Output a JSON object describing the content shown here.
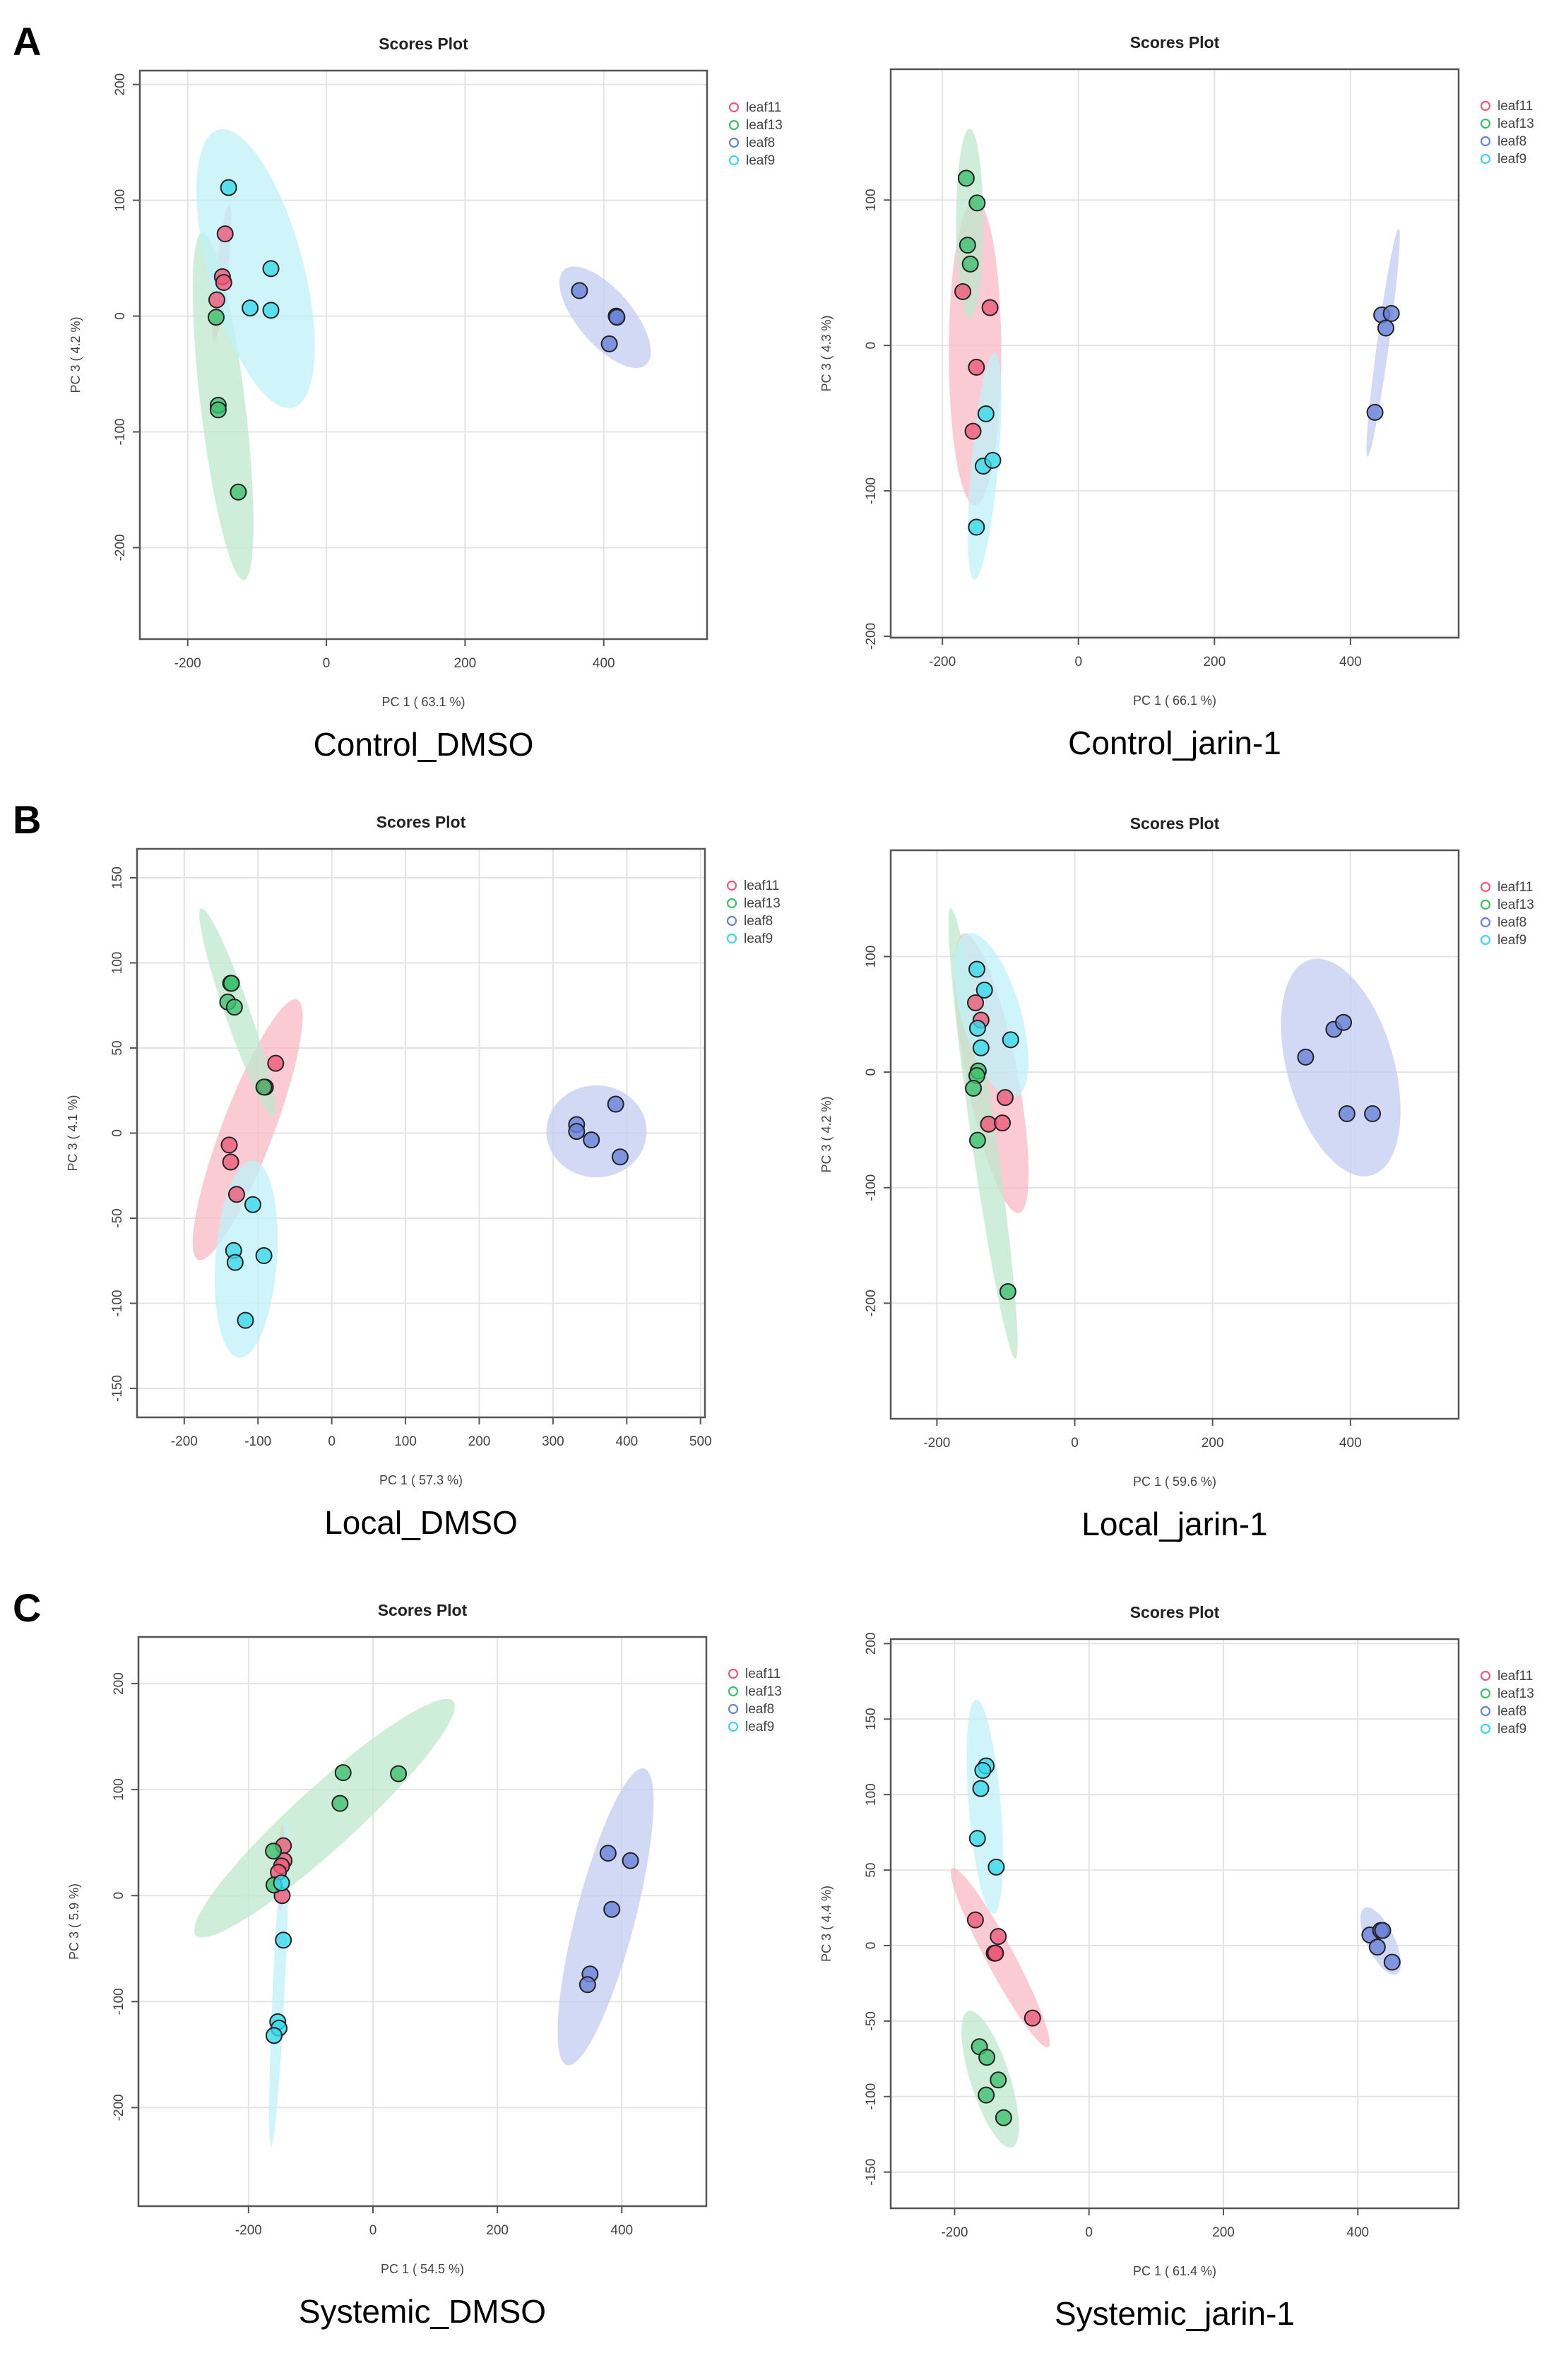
{
  "colors": {
    "leaf11": "#ee5a78",
    "leaf13": "#3fbf6e",
    "leaf8": "#6a82d8",
    "leaf9": "#3ad8ea",
    "ellipse_leaf11": "#f9b9c6",
    "ellipse_leaf13": "#bfe8cc",
    "ellipse_leaf8": "#c3ccf2",
    "ellipse_leaf9": "#bff1f8"
  },
  "chart_data": [
    {
      "type": "scatter",
      "panel_letter": "A",
      "title": "Scores Plot",
      "caption": "Control_DMSO",
      "xlabel": "PC 1 ( 63.1 %)",
      "ylabel": "PC 3 ( 4.2 %)",
      "xlim": [
        -269,
        549
      ],
      "ylim": [
        -279,
        212
      ],
      "xticks": [
        -200,
        0,
        200,
        400
      ],
      "yticks": [
        -200,
        -100,
        0,
        100,
        200
      ],
      "grid": true,
      "legend": "right",
      "series": [
        {
          "name": "leaf11",
          "points": [
            [
              -146,
              71
            ],
            [
              -150,
              34
            ],
            [
              -148,
              29
            ],
            [
              -158,
              14
            ]
          ],
          "ellipse": {
            "center": [
              -151,
              37
            ],
            "a": [
              -11,
              -59
            ],
            "b": [
              8.5,
              -0.5
            ]
          }
        },
        {
          "name": "leaf13",
          "points": [
            [
              -159,
              -1
            ],
            [
              -156,
              -77
            ],
            [
              -156,
              -81
            ],
            [
              -127,
              -152
            ]
          ],
          "ellipse": {
            "center": [
              -149,
              -78
            ],
            "a": [
              30,
              -150
            ],
            "b": [
              32,
              2
            ]
          }
        },
        {
          "name": "leaf8",
          "points": [
            [
              365,
              22
            ],
            [
              418,
              0
            ],
            [
              419,
              -1
            ],
            [
              408,
              -24
            ]
          ],
          "ellipse": {
            "center": [
              402,
              -1
            ],
            "a": [
              59,
              -41
            ],
            "b": [
              29.5,
              15.5
            ]
          }
        },
        {
          "name": "leaf9",
          "points": [
            [
              -141,
              111
            ],
            [
              -80,
              41
            ],
            [
              -110,
              7
            ],
            [
              -80,
              5
            ]
          ],
          "ellipse": {
            "center": [
              -102,
              41
            ],
            "a": [
              54,
              -120
            ],
            "b": [
              66,
              11
            ]
          }
        }
      ]
    },
    {
      "type": "scatter",
      "panel_letter": "",
      "title": "Scores Plot",
      "caption": "Control_jarin-1",
      "xlabel": "PC 1 ( 66.1 %)",
      "ylabel": "PC 3 ( 4.3 %)",
      "xlim": [
        -276,
        559
      ],
      "ylim": [
        -201,
        190
      ],
      "xticks": [
        -200,
        0,
        200,
        400
      ],
      "yticks": [
        -200,
        -100,
        0,
        100
      ],
      "grid": true,
      "legend": "right",
      "series": [
        {
          "name": "leaf11",
          "points": [
            [
              -170,
              37
            ],
            [
              -130,
              26
            ],
            [
              -150,
              -15
            ],
            [
              -155,
              -59
            ]
          ],
          "ellipse": {
            "center": [
              -152,
              -5
            ],
            "a": [
              0,
              -105
            ],
            "b": [
              38.6,
              0
            ]
          }
        },
        {
          "name": "leaf13",
          "points": [
            [
              -165,
              115
            ],
            [
              -149,
              98
            ],
            [
              -163,
              69
            ],
            [
              -159,
              56
            ]
          ],
          "ellipse": {
            "center": [
              -160,
              84
            ],
            "a": [
              0,
              -65
            ],
            "b": [
              20,
              0
            ]
          }
        },
        {
          "name": "leaf8",
          "points": [
            [
              446,
              21
            ],
            [
              460,
              22
            ],
            [
              452,
              12
            ],
            [
              436,
              -46
            ]
          ],
          "ellipse": {
            "center": [
              448,
              2
            ],
            "a": [
              23,
              78.5
            ],
            "b": [
              8.7,
              -0.55
            ]
          }
        },
        {
          "name": "leaf9",
          "points": [
            [
              -136,
              -47
            ],
            [
              -140,
              -83
            ],
            [
              -126,
              -79
            ],
            [
              -150,
              -125
            ]
          ],
          "ellipse": {
            "center": [
              -138,
              -83
            ],
            "a": [
              -15,
              -78
            ],
            "b": [
              19.6,
              -0.85
            ]
          }
        }
      ]
    },
    {
      "type": "scatter",
      "panel_letter": "B",
      "title": "Scores Plot",
      "caption": "Local_DMSO",
      "xlabel": "PC 1 ( 57.3 %)",
      "ylabel": "PC 3 ( 4.1 %)",
      "xlim": [
        -264,
        506
      ],
      "ylim": [
        -167,
        167
      ],
      "xticks": [
        -200,
        -100,
        0,
        100,
        200,
        300,
        400,
        500
      ],
      "yticks": [
        -150,
        -100,
        -50,
        0,
        50,
        100,
        150
      ],
      "grid": true,
      "legend": "right",
      "series": [
        {
          "name": "leaf11",
          "points": [
            [
              -76,
              41
            ],
            [
              -90,
              27
            ],
            [
              -139,
              -7
            ],
            [
              -137,
              -17
            ],
            [
              -129,
              -36
            ]
          ],
          "ellipse": {
            "center": [
              -114,
              2
            ],
            "a": [
              -67,
              -76.5
            ],
            "b": [
              32.7,
              -5.4
            ]
          }
        },
        {
          "name": "leaf13",
          "points": [
            [
              -137,
              88
            ],
            [
              -136,
              88
            ],
            [
              -141,
              77
            ],
            [
              -132,
              74
            ],
            [
              -92,
              27
            ]
          ],
          "ellipse": {
            "center": [
              -128,
              71
            ],
            "a": [
              49,
              -61
            ],
            "b": [
              15.9,
              2.4
            ]
          }
        },
        {
          "name": "leaf8",
          "points": [
            [
              332,
              5
            ],
            [
              332,
              1
            ],
            [
              352,
              -4
            ],
            [
              385,
              17
            ],
            [
              391,
              -14
            ]
          ],
          "ellipse": {
            "center": [
              359,
              1
            ],
            "a": [
              68,
              0
            ],
            "b": [
              0,
              27
            ]
          }
        },
        {
          "name": "leaf9",
          "points": [
            [
              -107,
              -42
            ],
            [
              -133,
              -69
            ],
            [
              -131,
              -76
            ],
            [
              -92,
              -72
            ],
            [
              -117,
              -110
            ]
          ],
          "ellipse": {
            "center": [
              -116,
              -74
            ],
            "a": [
              -9.4,
              -58
            ],
            "b": [
              41.7,
              -1.25
            ]
          }
        }
      ]
    },
    {
      "type": "scatter",
      "panel_letter": "",
      "title": "Scores Plot",
      "caption": "Local_jarin-1",
      "xlabel": "PC 1 ( 59.6 %)",
      "ylabel": "PC 3 ( 4.2 %)",
      "xlim": [
        -267,
        557
      ],
      "ylim": [
        -300,
        192
      ],
      "xticks": [
        -200,
        0,
        200,
        400
      ],
      "yticks": [
        -200,
        -100,
        0,
        100
      ],
      "grid": true,
      "legend": "right",
      "series": [
        {
          "name": "leaf11",
          "points": [
            [
              -144,
              60
            ],
            [
              -136,
              45
            ],
            [
              -101,
              -22
            ],
            [
              -125,
              -45
            ],
            [
              -105,
              -44
            ]
          ],
          "ellipse": {
            "center": [
              -121,
              -1
            ],
            "a": [
              40,
              -121
            ],
            "b": [
              36.6,
              4.4
            ]
          }
        },
        {
          "name": "leaf13",
          "points": [
            [
              -140,
              1
            ],
            [
              -142,
              -3
            ],
            [
              -147,
              -14
            ],
            [
              -141,
              -59
            ],
            [
              -97,
              -190
            ]
          ],
          "ellipse": {
            "center": [
              -133,
              -53
            ],
            "a": [
              47,
              -195
            ],
            "b": [
              17.8,
              1.5
            ]
          }
        },
        {
          "name": "leaf8",
          "points": [
            [
              335,
              13
            ],
            [
              376,
              37
            ],
            [
              390,
              43
            ],
            [
              395,
              -36
            ],
            [
              432,
              -36
            ]
          ],
          "ellipse": {
            "center": [
              386,
              4
            ],
            "a": [
              44.5,
              -93.4
            ],
            "b": [
              74.5,
              12.6
            ]
          }
        },
        {
          "name": "leaf9",
          "points": [
            [
              -142,
              89
            ],
            [
              -131,
              71
            ],
            [
              -141,
              38
            ],
            [
              -136,
              21
            ],
            [
              -93,
              28
            ]
          ],
          "ellipse": {
            "center": [
              -121,
              49
            ],
            "a": [
              34.5,
              -71
            ],
            "b": [
              41.4,
              7.1
            ]
          }
        }
      ]
    },
    {
      "type": "scatter",
      "panel_letter": "C",
      "title": "Scores Plot",
      "caption": "Systemic_DMSO",
      "xlabel": "PC 1 ( 54.5 %)",
      "ylabel": "PC 3 ( 5.9 %)",
      "xlim": [
        -377,
        536
      ],
      "ylim": [
        -293,
        244
      ],
      "xticks": [
        -200,
        0,
        200,
        400
      ],
      "yticks": [
        -200,
        -100,
        0,
        100,
        200
      ],
      "grid": true,
      "legend": "right",
      "series": [
        {
          "name": "leaf11",
          "points": [
            [
              -144,
              47
            ],
            [
              -143,
              33
            ],
            [
              -147,
              28
            ],
            [
              -152,
              22
            ],
            [
              -146,
              0
            ]
          ],
          "ellipse": {
            "center": [
              -147,
              26
            ],
            "a": [
              1.6,
              41
            ],
            "b": [
              6.4,
              0
            ]
          }
        },
        {
          "name": "leaf13",
          "points": [
            [
              -48,
              116
            ],
            [
              41,
              115
            ],
            [
              -53,
              87
            ],
            [
              -160,
              42
            ],
            [
              -159,
              10
            ]
          ],
          "ellipse": {
            "center": [
              -78,
              73
            ],
            "a": [
              207,
              110.6
            ],
            "b": [
              33.2,
              -21.4
            ]
          }
        },
        {
          "name": "leaf8",
          "points": [
            [
              378,
              40
            ],
            [
              414,
              33
            ],
            [
              384,
              -13
            ],
            [
              349,
              -74
            ],
            [
              345,
              -84
            ]
          ],
          "ellipse": {
            "center": [
              374,
              -20
            ],
            "a": [
              62,
              140
            ],
            "b": [
              46,
              -7
            ]
          }
        },
        {
          "name": "leaf9",
          "points": [
            [
              -147,
              12
            ],
            [
              -144,
              -42
            ],
            [
              -153,
              -119
            ],
            [
              -151,
              -125
            ],
            [
              -159,
              -132
            ]
          ],
          "ellipse": {
            "center": [
              -151,
              -82
            ],
            "a": [
              -12.7,
              -155
            ],
            "b": [
              9.6,
              0
            ]
          }
        }
      ]
    },
    {
      "type": "scatter",
      "panel_letter": "",
      "title": "Scores Plot",
      "caption": "Systemic_jarin-1",
      "xlabel": "PC 1 ( 61.4 %)",
      "ylabel": "PC 3 ( 4.4 %)",
      "xlim": [
        -295,
        550
      ],
      "ylim": [
        -174,
        203
      ],
      "xticks": [
        -200,
        0,
        200,
        400
      ],
      "yticks": [
        -150,
        -100,
        -50,
        0,
        50,
        100,
        150,
        200
      ],
      "grid": true,
      "legend": "right",
      "series": [
        {
          "name": "leaf11",
          "points": [
            [
              -169,
              17
            ],
            [
              -135,
              6
            ],
            [
              -141,
              -5
            ],
            [
              -139,
              -5
            ],
            [
              -84,
              -48
            ]
          ],
          "ellipse": {
            "center": [
              -132,
              -8
            ],
            "a": [
              71.4,
              -59.3
            ],
            "b": [
              18.2,
              4.3
            ]
          }
        },
        {
          "name": "leaf13",
          "points": [
            [
              -163,
              -67
            ],
            [
              -152,
              -74
            ],
            [
              -135,
              -89
            ],
            [
              -153,
              -99
            ],
            [
              -127,
              -114
            ]
          ],
          "ellipse": {
            "center": [
              -147,
              -88.5
            ],
            "a": [
              32.4,
              -45.2
            ],
            "b": [
              28,
              4
            ]
          }
        },
        {
          "name": "leaf8",
          "points": [
            [
              418,
              7
            ],
            [
              434,
              10
            ],
            [
              437,
              10
            ],
            [
              429,
              -1
            ],
            [
              451,
              -11
            ]
          ],
          "ellipse": {
            "center": [
              434,
              3
            ],
            "a": [
              23.6,
              -22
            ],
            "b": [
              18.6,
              4
            ]
          }
        },
        {
          "name": "leaf9",
          "points": [
            [
              -153,
              119
            ],
            [
              -158,
              116
            ],
            [
              -161,
              104
            ],
            [
              -166,
              71
            ],
            [
              -138,
              52
            ]
          ],
          "ellipse": {
            "center": [
              -155,
              92
            ],
            "a": [
              12.5,
              -71
            ],
            "b": [
              24,
              -0.6
            ]
          }
        }
      ]
    }
  ]
}
